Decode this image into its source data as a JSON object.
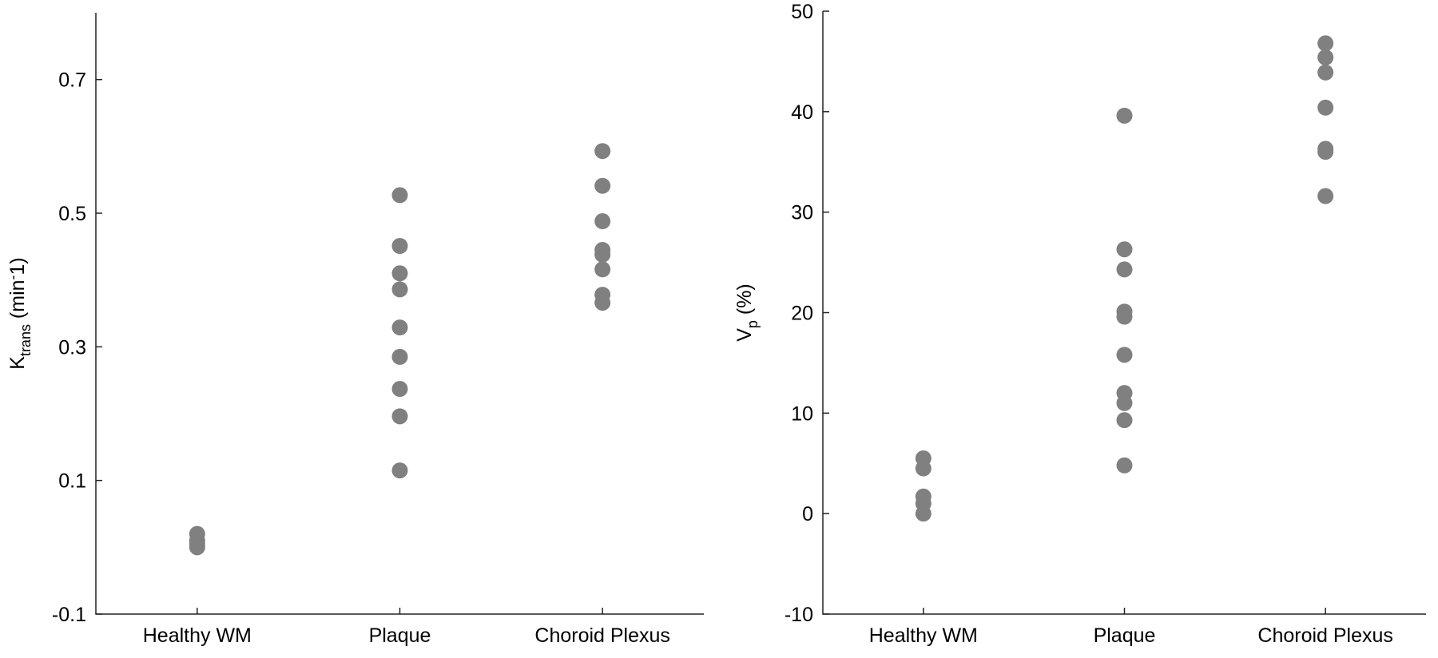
{
  "chart_data": [
    {
      "type": "strip",
      "ylabel": [
        "K",
        "trans",
        " (min",
        "-",
        "1)"
      ],
      "categories": [
        "Healthy WM",
        "Plaque",
        "Choroid Plexus"
      ],
      "values": [
        [
          0.02,
          0.01,
          0.005,
          0.0
        ],
        [
          0.527,
          0.451,
          0.41,
          0.386,
          0.329,
          0.285,
          0.237,
          0.196,
          0.115
        ],
        [
          0.593,
          0.541,
          0.488,
          0.445,
          0.438,
          0.416,
          0.378,
          0.366
        ]
      ],
      "color": "#808080",
      "ylim": [
        -0.1,
        0.8
      ],
      "yticks": [
        -0.1,
        0.1,
        0.3,
        0.5,
        0.7
      ]
    },
    {
      "type": "strip",
      "ylabel": [
        "V",
        "p",
        " (%)"
      ],
      "categories": [
        "Healthy WM",
        "Plaque",
        "Choroid Plexus"
      ],
      "values": [
        [
          5.5,
          4.5,
          1.7,
          1.0,
          0.0
        ],
        [
          39.6,
          26.3,
          24.3,
          20.1,
          19.6,
          15.8,
          12.0,
          11.0,
          9.3,
          4.8
        ],
        [
          46.8,
          45.4,
          43.9,
          40.4,
          36.3,
          36.0,
          31.6
        ]
      ],
      "color": "#808080",
      "ylim": [
        -10,
        50
      ],
      "yticks": [
        -10,
        0,
        10,
        20,
        30,
        40,
        50
      ]
    }
  ]
}
